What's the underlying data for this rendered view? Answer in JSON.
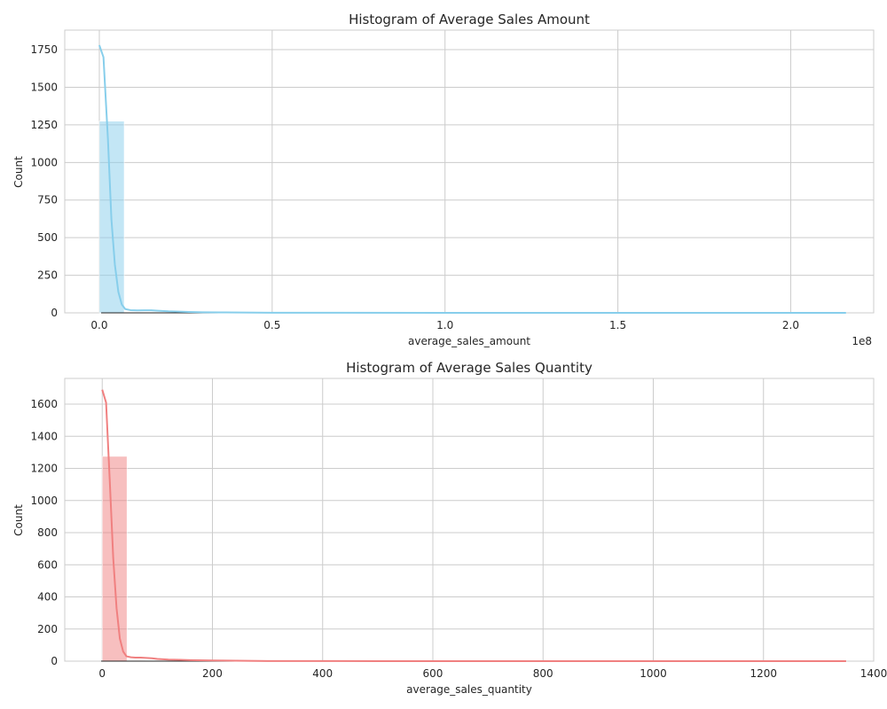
{
  "chart_data": [
    {
      "type": "histogram",
      "title": "Histogram of Average Sales Amount",
      "xlabel": "average_sales_amount",
      "ylabel": "Count",
      "x_offset_label": "1e8",
      "x_scale": 100000000,
      "xlim": [
        -0.1,
        2.24
      ],
      "ylim": [
        0,
        1880
      ],
      "x_ticks": [
        0.0,
        0.5,
        1.0,
        1.5,
        2.0
      ],
      "x_tick_labels": [
        "0.0",
        "0.5",
        "1.0",
        "1.5",
        "2.0"
      ],
      "y_ticks": [
        0,
        250,
        500,
        750,
        1000,
        1250,
        1500,
        1750
      ],
      "y_tick_labels": [
        "0",
        "250",
        "500",
        "750",
        "1000",
        "1250",
        "1500",
        "1750"
      ],
      "bar_color": "#87ceeb",
      "line_color": "#87ceeb",
      "grid": true,
      "bins": [
        {
          "x0": 0.0,
          "x1": 0.072,
          "count": 1275
        },
        {
          "x0": 0.072,
          "x1": 0.144,
          "count": 2
        },
        {
          "x0": 0.144,
          "x1": 0.216,
          "count": 1
        },
        {
          "x0": 0.216,
          "x1": 0.288,
          "count": 1
        },
        {
          "x0": 0.288,
          "x1": 0.36,
          "count": 0
        },
        {
          "x0": 0.36,
          "x1": 0.432,
          "count": 0
        },
        {
          "x0": 0.432,
          "x1": 0.504,
          "count": 0
        },
        {
          "x0": 0.504,
          "x1": 0.576,
          "count": 0
        },
        {
          "x0": 0.576,
          "x1": 0.648,
          "count": 0
        },
        {
          "x0": 0.648,
          "x1": 0.72,
          "count": 0
        },
        {
          "x0": 0.72,
          "x1": 0.792,
          "count": 0
        },
        {
          "x0": 0.792,
          "x1": 0.864,
          "count": 0
        },
        {
          "x0": 0.864,
          "x1": 0.936,
          "count": 0
        },
        {
          "x0": 0.936,
          "x1": 1.008,
          "count": 0
        },
        {
          "x0": 1.008,
          "x1": 1.08,
          "count": 0
        },
        {
          "x0": 1.08,
          "x1": 1.152,
          "count": 0
        },
        {
          "x0": 1.152,
          "x1": 1.224,
          "count": 0
        },
        {
          "x0": 1.224,
          "x1": 1.296,
          "count": 0
        },
        {
          "x0": 1.296,
          "x1": 1.368,
          "count": 0
        },
        {
          "x0": 1.368,
          "x1": 1.44,
          "count": 0
        },
        {
          "x0": 1.44,
          "x1": 1.512,
          "count": 0
        },
        {
          "x0": 1.512,
          "x1": 1.584,
          "count": 0
        },
        {
          "x0": 1.584,
          "x1": 1.656,
          "count": 0
        },
        {
          "x0": 1.656,
          "x1": 1.728,
          "count": 0
        },
        {
          "x0": 1.728,
          "x1": 1.8,
          "count": 0
        },
        {
          "x0": 1.8,
          "x1": 1.872,
          "count": 0
        },
        {
          "x0": 1.872,
          "x1": 1.944,
          "count": 0
        },
        {
          "x0": 1.944,
          "x1": 2.016,
          "count": 0
        },
        {
          "x0": 2.016,
          "x1": 2.088,
          "count": 0
        },
        {
          "x0": 2.088,
          "x1": 2.16,
          "count": 1
        }
      ],
      "kde": {
        "x": [
          0.0,
          0.012,
          0.025,
          0.035,
          0.045,
          0.055,
          0.065,
          0.075,
          0.09,
          0.11,
          0.13,
          0.15,
          0.17,
          0.2,
          0.23,
          0.26,
          0.3,
          0.35,
          0.5,
          1.0,
          1.5,
          2.0,
          2.16
        ],
        "y": [
          1780,
          1700,
          1150,
          620,
          320,
          140,
          55,
          25,
          18,
          16,
          17,
          17,
          14,
          10,
          8,
          6,
          4,
          3,
          1,
          0,
          0,
          0,
          0
        ]
      }
    },
    {
      "type": "histogram",
      "title": "Histogram of Average Sales Quantity",
      "xlabel": "average_sales_quantity",
      "ylabel": "Count",
      "xlim": [
        -68,
        1400
      ],
      "ylim": [
        0,
        1760
      ],
      "x_ticks": [
        0,
        200,
        400,
        600,
        800,
        1000,
        1200,
        1400
      ],
      "x_tick_labels": [
        "0",
        "200",
        "400",
        "600",
        "800",
        "1000",
        "1200",
        "1400"
      ],
      "y_ticks": [
        0,
        200,
        400,
        600,
        800,
        1000,
        1200,
        1400,
        1600
      ],
      "y_tick_labels": [
        "0",
        "200",
        "400",
        "600",
        "800",
        "1000",
        "1200",
        "1400",
        "1600"
      ],
      "bar_color": "#f08080",
      "line_color": "#f08080",
      "grid": true,
      "bins": [
        {
          "x0": 0,
          "x1": 45,
          "count": 1275
        },
        {
          "x0": 45,
          "x1": 90,
          "count": 3
        },
        {
          "x0": 90,
          "x1": 135,
          "count": 1
        },
        {
          "x0": 135,
          "x1": 180,
          "count": 1
        },
        {
          "x0": 180,
          "x1": 225,
          "count": 0
        },
        {
          "x0": 225,
          "x1": 270,
          "count": 0
        },
        {
          "x0": 270,
          "x1": 315,
          "count": 0
        },
        {
          "x0": 315,
          "x1": 360,
          "count": 0
        },
        {
          "x0": 360,
          "x1": 405,
          "count": 0
        },
        {
          "x0": 405,
          "x1": 450,
          "count": 0
        },
        {
          "x0": 450,
          "x1": 495,
          "count": 0
        },
        {
          "x0": 495,
          "x1": 540,
          "count": 0
        },
        {
          "x0": 540,
          "x1": 585,
          "count": 0
        },
        {
          "x0": 585,
          "x1": 630,
          "count": 0
        },
        {
          "x0": 630,
          "x1": 675,
          "count": 0
        },
        {
          "x0": 675,
          "x1": 720,
          "count": 0
        },
        {
          "x0": 720,
          "x1": 765,
          "count": 0
        },
        {
          "x0": 765,
          "x1": 810,
          "count": 0
        },
        {
          "x0": 810,
          "x1": 855,
          "count": 0
        },
        {
          "x0": 855,
          "x1": 900,
          "count": 0
        },
        {
          "x0": 900,
          "x1": 945,
          "count": 0
        },
        {
          "x0": 945,
          "x1": 990,
          "count": 0
        },
        {
          "x0": 990,
          "x1": 1035,
          "count": 0
        },
        {
          "x0": 1035,
          "x1": 1080,
          "count": 0
        },
        {
          "x0": 1080,
          "x1": 1125,
          "count": 0
        },
        {
          "x0": 1125,
          "x1": 1170,
          "count": 0
        },
        {
          "x0": 1170,
          "x1": 1215,
          "count": 0
        },
        {
          "x0": 1215,
          "x1": 1260,
          "count": 0
        },
        {
          "x0": 1260,
          "x1": 1305,
          "count": 0
        },
        {
          "x0": 1305,
          "x1": 1350,
          "count": 1
        }
      ],
      "kde": {
        "x": [
          0,
          7,
          14,
          20,
          26,
          32,
          38,
          44,
          52,
          60,
          70,
          80,
          90,
          100,
          120,
          140,
          160,
          200,
          300,
          500,
          800,
          1100,
          1350
        ],
        "y": [
          1690,
          1610,
          1100,
          640,
          330,
          140,
          60,
          30,
          24,
          22,
          22,
          20,
          18,
          14,
          10,
          8,
          6,
          4,
          1,
          0,
          0,
          0,
          0
        ]
      }
    }
  ]
}
